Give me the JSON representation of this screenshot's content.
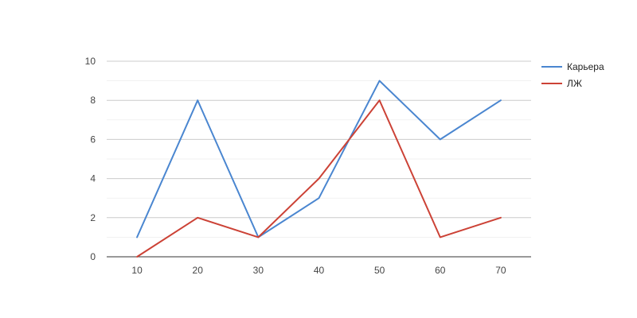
{
  "chart_data": {
    "type": "line",
    "title": "",
    "xlabel": "",
    "ylabel": "",
    "x": [
      10,
      20,
      30,
      40,
      50,
      60,
      70
    ],
    "x_ticks": [
      "10",
      "20",
      "30",
      "40",
      "50",
      "60",
      "70"
    ],
    "ylim": [
      0,
      10
    ],
    "y_ticks": [
      "0",
      "2",
      "4",
      "6",
      "8",
      "10"
    ],
    "grid": true,
    "legend_position": "right",
    "series": [
      {
        "name": "Карьера",
        "color": "#4a86d0",
        "values": [
          1,
          8,
          1,
          3,
          9,
          6,
          8
        ]
      },
      {
        "name": "ЛЖ",
        "color": "#cc4236",
        "values": [
          0,
          2,
          1,
          4,
          8,
          1,
          2
        ]
      }
    ]
  }
}
